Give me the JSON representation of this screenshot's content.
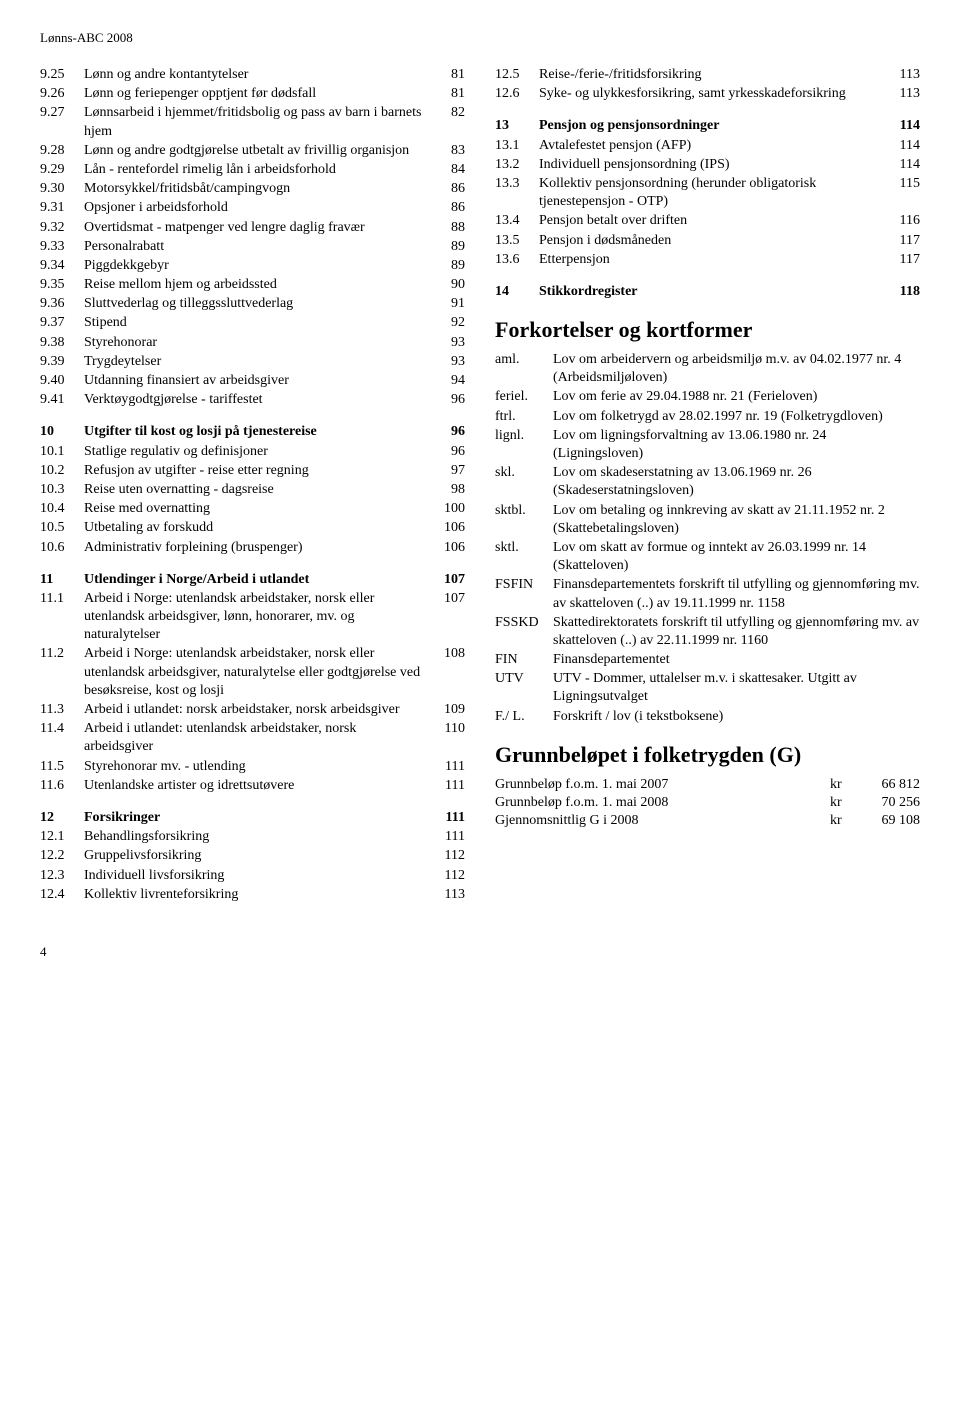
{
  "header": "Lønns-ABC 2008",
  "footer_page": "4",
  "leftToc": [
    {
      "items": [
        {
          "num": "9.25",
          "text": "Lønn og andre kontantytelser",
          "page": "81"
        },
        {
          "num": "9.26",
          "text": "Lønn og feriepenger opptjent før dødsfall",
          "page": "81"
        },
        {
          "num": "9.27",
          "text": "Lønnsarbeid i hjemmet/fritidsbolig og pass av barn i barnets hjem",
          "page": "82"
        },
        {
          "num": "9.28",
          "text": "Lønn og andre godtgjørelse utbetalt av frivillig organisjon",
          "page": "83"
        },
        {
          "num": "9.29",
          "text": "Lån - rentefordel rimelig lån i arbeidsforhold",
          "page": "84"
        },
        {
          "num": "9.30",
          "text": "Motorsykkel/fritidsbåt/campingvogn",
          "page": "86"
        },
        {
          "num": "9.31",
          "text": "Opsjoner i arbeidsforhold",
          "page": "86"
        },
        {
          "num": "9.32",
          "text": "Overtidsmat - matpenger ved lengre daglig fravær",
          "page": "88"
        },
        {
          "num": "9.33",
          "text": "Personalrabatt",
          "page": "89"
        },
        {
          "num": "9.34",
          "text": "Piggdekkgebyr",
          "page": "89"
        },
        {
          "num": "9.35",
          "text": "Reise mellom hjem og arbeidssted",
          "page": "90"
        },
        {
          "num": "9.36",
          "text": "Sluttvederlag og tilleggssluttvederlag",
          "page": "91"
        },
        {
          "num": "9.37",
          "text": "Stipend",
          "page": "92"
        },
        {
          "num": "9.38",
          "text": "Styrehonorar",
          "page": "93"
        },
        {
          "num": "9.39",
          "text": "Trygdeytelser",
          "page": "93"
        },
        {
          "num": "9.40",
          "text": "Utdanning finansiert av arbeidsgiver",
          "page": "94"
        },
        {
          "num": "9.41",
          "text": "Verktøygodtgjørelse - tariffestet",
          "page": "96"
        }
      ]
    },
    {
      "items": [
        {
          "num": "10",
          "text": "Utgifter til kost og losji på tjenestereise",
          "page": "96",
          "bold": true
        },
        {
          "num": "10.1",
          "text": "Statlige regulativ og definisjoner",
          "page": "96"
        },
        {
          "num": "10.2",
          "text": "Refusjon av utgifter - reise etter regning",
          "page": "97"
        },
        {
          "num": "10.3",
          "text": "Reise uten overnatting - dagsreise",
          "page": "98"
        },
        {
          "num": "10.4",
          "text": "Reise med overnatting",
          "page": "100"
        },
        {
          "num": "10.5",
          "text": "Utbetaling av forskudd",
          "page": "106"
        },
        {
          "num": "10.6",
          "text": "Administrativ forpleining (bruspenger)",
          "page": "106"
        }
      ]
    },
    {
      "items": [
        {
          "num": "11",
          "text": "Utlendinger i Norge/Arbeid i utlandet",
          "page": "107",
          "bold": true
        },
        {
          "num": "11.1",
          "text": "Arbeid i Norge: utenlandsk arbeidstaker, norsk eller utenlandsk arbeidsgiver, lønn, honorarer, mv. og naturalytelser",
          "page": "107"
        },
        {
          "num": "11.2",
          "text": "Arbeid i Norge: utenlandsk arbeidstaker, norsk eller utenlandsk arbeidsgiver, naturalytelse eller godtgjørelse ved besøksreise, kost og losji",
          "page": "108"
        },
        {
          "num": "11.3",
          "text": "Arbeid i utlandet: norsk arbeidstaker, norsk arbeidsgiver",
          "page": "109"
        },
        {
          "num": "11.4",
          "text": "Arbeid i utlandet: utenlandsk arbeidstaker, norsk arbeidsgiver",
          "page": "110"
        },
        {
          "num": "11.5",
          "text": "Styrehonorar mv. - utlending",
          "page": "111"
        },
        {
          "num": "11.6",
          "text": "Utenlandske artister og idrettsutøvere",
          "page": "111"
        }
      ]
    },
    {
      "items": [
        {
          "num": "12",
          "text": "Forsikringer",
          "page": "111",
          "bold": true
        },
        {
          "num": "12.1",
          "text": "Behandlingsforsikring",
          "page": "111"
        },
        {
          "num": "12.2",
          "text": "Gruppelivsforsikring",
          "page": "112"
        },
        {
          "num": "12.3",
          "text": "Individuell livsforsikring",
          "page": "112"
        },
        {
          "num": "12.4",
          "text": "Kollektiv livrenteforsikring",
          "page": "113"
        }
      ]
    }
  ],
  "rightToc": [
    {
      "items": [
        {
          "num": "12.5",
          "text": "Reise-/ferie-/fritidsforsikring",
          "page": "113"
        },
        {
          "num": "12.6",
          "text": "Syke- og ulykkesforsikring, samt yrkesskadeforsikring",
          "page": "113"
        }
      ]
    },
    {
      "items": [
        {
          "num": "13",
          "text": "Pensjon og pensjonsordninger",
          "page": "114",
          "bold": true
        },
        {
          "num": "13.1",
          "text": "Avtalefestet pensjon (AFP)",
          "page": "114"
        },
        {
          "num": "13.2",
          "text": "Individuell pensjonsordning (IPS)",
          "page": "114"
        },
        {
          "num": "13.3",
          "text": "Kollektiv pensjonsordning (herunder obligatorisk tjenestepensjon - OTP)",
          "page": "115"
        },
        {
          "num": "13.4",
          "text": "Pensjon betalt over driften",
          "page": "116"
        },
        {
          "num": "13.5",
          "text": "Pensjon i dødsmåneden",
          "page": "117"
        },
        {
          "num": "13.6",
          "text": "Etterpensjon",
          "page": "117"
        }
      ]
    },
    {
      "items": [
        {
          "num": "14",
          "text": "Stikkordregister",
          "page": "118",
          "bold": true
        }
      ]
    }
  ],
  "abbr_title": "Forkortelser og kortformer",
  "abbr": [
    {
      "key": "aml.",
      "val": "Lov om arbeidervern og arbeidsmiljø m.v. av 04.02.1977 nr. 4 (Arbeidsmiljøloven)"
    },
    {
      "key": "feriel.",
      "val": "Lov om ferie av 29.04.1988 nr. 21 (Ferieloven)"
    },
    {
      "key": "ftrl.",
      "val": "Lov om folketrygd av 28.02.1997 nr. 19 (Folketrygdloven)"
    },
    {
      "key": "lignl.",
      "val": "Lov om ligningsforvaltning av 13.06.1980 nr. 24 (Ligningsloven)"
    },
    {
      "key": "skl.",
      "val": "Lov om skadeserstatning av 13.06.1969 nr. 26 (Skadeserstatningsloven)"
    },
    {
      "key": "sktbl.",
      "val": "Lov om betaling og innkreving av skatt av 21.11.1952 nr. 2 (Skattebetalingsloven)"
    },
    {
      "key": "sktl.",
      "val": "Lov om skatt av formue og inntekt av 26.03.1999 nr. 14 (Skatteloven)"
    },
    {
      "key": "FSFIN",
      "val": "Finansdepartementets forskrift til utfylling og gjennomføring mv. av skatteloven (..) av 19.11.1999 nr. 1158"
    },
    {
      "key": "FSSKD",
      "val": "Skattedirektoratets forskrift til utfylling og gjennomføring mv. av skatteloven (..) av 22.11.1999 nr. 1160"
    },
    {
      "key": "FIN",
      "val": "Finansdepartementet"
    },
    {
      "key": "UTV",
      "val": "UTV - Dommer, uttalelser m.v. i skattesaker. Utgitt av Ligningsutvalget"
    },
    {
      "key": "F./ L.",
      "val": "Forskrift / lov (i tekstboksene)"
    }
  ],
  "g_title": "Grunnbeløpet i folketrygden (G)",
  "g_rows": [
    {
      "label": "Grunnbeløp f.o.m. 1. mai 2007",
      "kr": "kr",
      "amount": "66 812"
    },
    {
      "label": "Grunnbeløp f.o.m. 1. mai 2008",
      "kr": "kr",
      "amount": "70 256"
    },
    {
      "label": "Gjennomsnittlig G i 2008",
      "kr": "kr",
      "amount": "69 108"
    }
  ]
}
